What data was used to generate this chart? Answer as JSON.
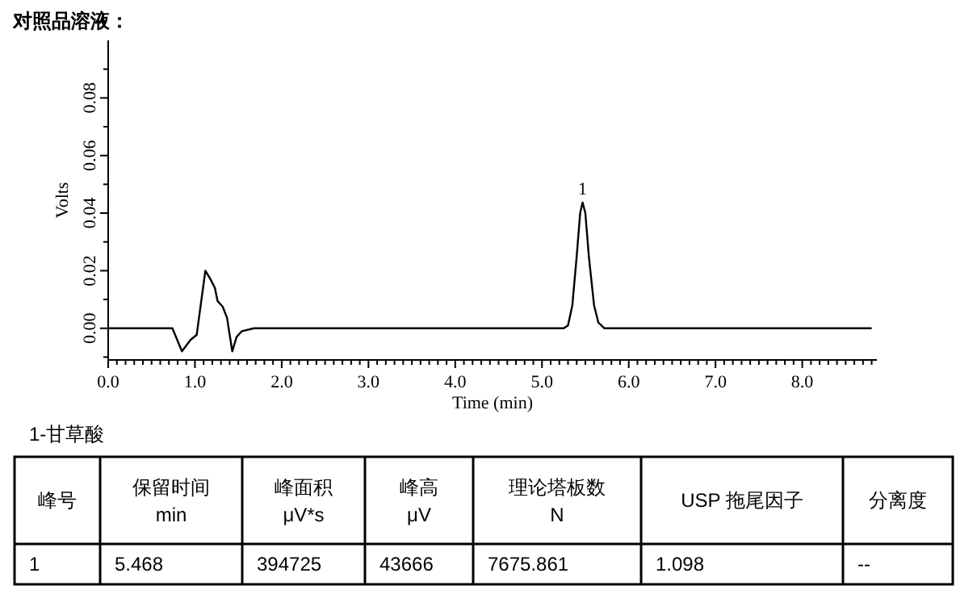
{
  "chart_data": {
    "type": "line",
    "title": "对照品溶液：",
    "xlabel": "Time (min)",
    "ylabel": "Volts",
    "x": [
      0,
      0.74,
      0.85,
      0.95,
      1.02,
      1.12,
      1.18,
      1.23,
      1.26,
      1.32,
      1.37,
      1.43,
      1.48,
      1.54,
      1.68,
      5.25,
      5.3,
      5.35,
      5.4,
      5.44,
      5.468,
      5.5,
      5.54,
      5.6,
      5.65,
      5.72,
      8.8
    ],
    "series": [
      {
        "color": "#000000",
        "values": [
          0,
          0,
          -0.008,
          -0.004,
          -0.0023,
          0.02,
          0.017,
          0.014,
          0.0095,
          0.0075,
          0.0036,
          -0.008,
          -0.003,
          -0.001,
          0,
          0,
          0.001,
          0.008,
          0.025,
          0.04,
          0.0437,
          0.04,
          0.025,
          0.008,
          0.002,
          0,
          0
        ]
      }
    ],
    "xlim": [
      0,
      8.86
    ],
    "ylim": [
      -0.011,
      0.1
    ],
    "xticks": [
      {
        "value": 0,
        "label": "0.0"
      },
      {
        "value": 0.1,
        "label": null
      },
      {
        "value": 0.2,
        "label": null
      },
      {
        "value": 0.3,
        "label": null
      },
      {
        "value": 0.4,
        "label": null
      },
      {
        "value": 0.5,
        "label": null
      },
      {
        "value": 0.6,
        "label": null
      },
      {
        "value": 0.7,
        "label": null
      },
      {
        "value": 0.8,
        "label": null
      },
      {
        "value": 0.9,
        "label": null
      },
      {
        "value": 1,
        "label": "1.0"
      },
      {
        "value": 1.1,
        "label": null
      },
      {
        "value": 1.2,
        "label": null
      },
      {
        "value": 1.3,
        "label": null
      },
      {
        "value": 1.4,
        "label": null
      },
      {
        "value": 1.5,
        "label": null
      },
      {
        "value": 1.6,
        "label": null
      },
      {
        "value": 1.7,
        "label": null
      },
      {
        "value": 1.8,
        "label": null
      },
      {
        "value": 1.9,
        "label": null
      },
      {
        "value": 2,
        "label": "2.0"
      },
      {
        "value": 2.1,
        "label": null
      },
      {
        "value": 2.2,
        "label": null
      },
      {
        "value": 2.3,
        "label": null
      },
      {
        "value": 2.4,
        "label": null
      },
      {
        "value": 2.5,
        "label": null
      },
      {
        "value": 2.6,
        "label": null
      },
      {
        "value": 2.7,
        "label": null
      },
      {
        "value": 2.8,
        "label": null
      },
      {
        "value": 2.9,
        "label": null
      },
      {
        "value": 3,
        "label": "3.0"
      },
      {
        "value": 3.1,
        "label": null
      },
      {
        "value": 3.2,
        "label": null
      },
      {
        "value": 3.3,
        "label": null
      },
      {
        "value": 3.4,
        "label": null
      },
      {
        "value": 3.5,
        "label": null
      },
      {
        "value": 3.6,
        "label": null
      },
      {
        "value": 3.7,
        "label": null
      },
      {
        "value": 3.8,
        "label": null
      },
      {
        "value": 3.9,
        "label": null
      },
      {
        "value": 4,
        "label": "4.0"
      },
      {
        "value": 4.1,
        "label": null
      },
      {
        "value": 4.2,
        "label": null
      },
      {
        "value": 4.3,
        "label": null
      },
      {
        "value": 4.4,
        "label": null
      },
      {
        "value": 4.5,
        "label": null
      },
      {
        "value": 4.6,
        "label": null
      },
      {
        "value": 4.7,
        "label": null
      },
      {
        "value": 4.8,
        "label": null
      },
      {
        "value": 4.9,
        "label": null
      },
      {
        "value": 5,
        "label": "5.0"
      },
      {
        "value": 5.1,
        "label": null
      },
      {
        "value": 5.2,
        "label": null
      },
      {
        "value": 5.3,
        "label": null
      },
      {
        "value": 5.4,
        "label": null
      },
      {
        "value": 5.5,
        "label": null
      },
      {
        "value": 5.6,
        "label": null
      },
      {
        "value": 5.7,
        "label": null
      },
      {
        "value": 5.8,
        "label": null
      },
      {
        "value": 5.9,
        "label": null
      },
      {
        "value": 6,
        "label": "6.0"
      },
      {
        "value": 6.1,
        "label": null
      },
      {
        "value": 6.2,
        "label": null
      },
      {
        "value": 6.3,
        "label": null
      },
      {
        "value": 6.4,
        "label": null
      },
      {
        "value": 6.5,
        "label": null
      },
      {
        "value": 6.6,
        "label": null
      },
      {
        "value": 6.7,
        "label": null
      },
      {
        "value": 6.8,
        "label": null
      },
      {
        "value": 6.9,
        "label": null
      },
      {
        "value": 7,
        "label": "7.0"
      },
      {
        "value": 7.1,
        "label": null
      },
      {
        "value": 7.2,
        "label": null
      },
      {
        "value": 7.3,
        "label": null
      },
      {
        "value": 7.4,
        "label": null
      },
      {
        "value": 7.5,
        "label": null
      },
      {
        "value": 7.6,
        "label": null
      },
      {
        "value": 7.7,
        "label": null
      },
      {
        "value": 7.8,
        "label": null
      },
      {
        "value": 7.9,
        "label": null
      },
      {
        "value": 8,
        "label": "8.0"
      },
      {
        "value": 8.1,
        "label": null
      },
      {
        "value": 8.2,
        "label": null
      },
      {
        "value": 8.3,
        "label": null
      },
      {
        "value": 8.4,
        "label": null
      },
      {
        "value": 8.5,
        "label": null
      },
      {
        "value": 8.6,
        "label": null
      },
      {
        "value": 8.7,
        "label": null
      },
      {
        "value": 8.8,
        "label": null
      }
    ],
    "yticks": [
      {
        "value": -0.01,
        "label": null
      },
      {
        "value": 0,
        "label": "0.00"
      },
      {
        "value": 0.01,
        "label": null
      },
      {
        "value": 0.02,
        "label": "0.02"
      },
      {
        "value": 0.03,
        "label": null
      },
      {
        "value": 0.04,
        "label": "0.04"
      },
      {
        "value": 0.05,
        "label": null
      },
      {
        "value": 0.06,
        "label": "0.06"
      },
      {
        "value": 0.07,
        "label": null
      },
      {
        "value": 0.08,
        "label": "0.08"
      },
      {
        "value": 0.09,
        "label": null
      }
    ],
    "grid": false,
    "annotations": [
      {
        "text": "1",
        "x": 5.468,
        "y": 0.0437
      },
      "1-甘草酸",
      "峰号",
      "保留时间\nmin",
      "峰面积\nμV*s",
      "峰高\nμV",
      "理论塔板数\nN",
      "USP 拖尾因子",
      "分离度",
      "1",
      "5.468",
      "394725",
      "43666",
      "7675.861",
      "1.098",
      "--"
    ]
  }
}
